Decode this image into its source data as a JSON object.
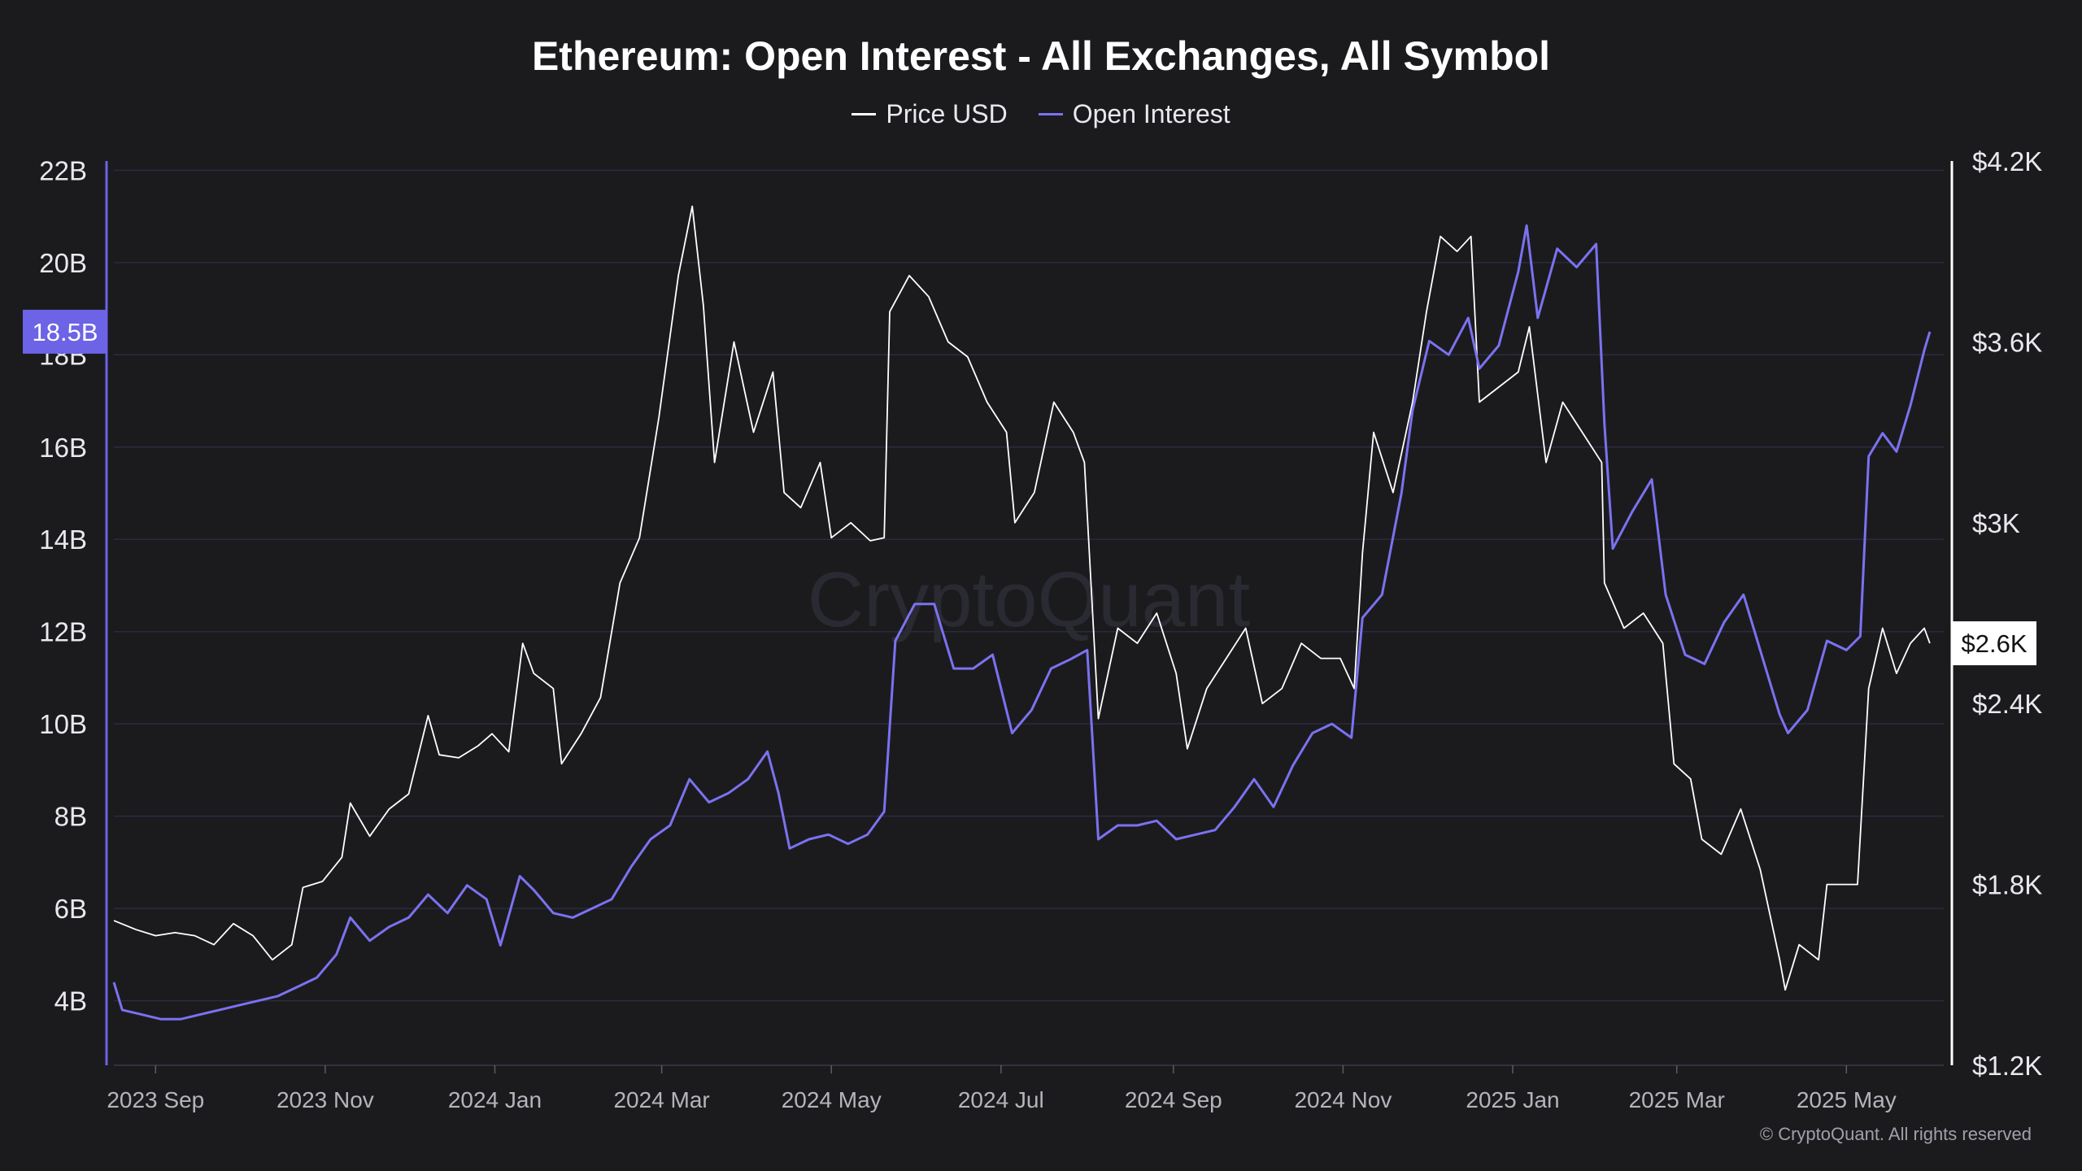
{
  "chart_data": {
    "type": "line",
    "title": "Ethereum: Open Interest - All Exchanges, All Symbol",
    "watermark": "CryptoQuant",
    "copyright": "© CryptoQuant. All rights reserved",
    "series": [
      {
        "name": "Price USD",
        "axis": "right",
        "color": "#ffffff",
        "points": [
          [
            "2023-08-17",
            1680
          ],
          [
            "2023-08-25",
            1650
          ],
          [
            "2023-09-01",
            1630
          ],
          [
            "2023-09-08",
            1640
          ],
          [
            "2023-09-15",
            1630
          ],
          [
            "2023-09-22",
            1600
          ],
          [
            "2023-09-29",
            1670
          ],
          [
            "2023-10-06",
            1630
          ],
          [
            "2023-10-13",
            1550
          ],
          [
            "2023-10-20",
            1600
          ],
          [
            "2023-10-24",
            1790
          ],
          [
            "2023-10-31",
            1810
          ],
          [
            "2023-11-07",
            1890
          ],
          [
            "2023-11-10",
            2070
          ],
          [
            "2023-11-17",
            1960
          ],
          [
            "2023-11-24",
            2050
          ],
          [
            "2023-12-01",
            2100
          ],
          [
            "2023-12-08",
            2360
          ],
          [
            "2023-12-12",
            2230
          ],
          [
            "2023-12-19",
            2220
          ],
          [
            "2023-12-26",
            2260
          ],
          [
            "2023-12-31",
            2300
          ],
          [
            "2024-01-06",
            2240
          ],
          [
            "2024-01-11",
            2600
          ],
          [
            "2024-01-15",
            2500
          ],
          [
            "2024-01-22",
            2450
          ],
          [
            "2024-01-25",
            2200
          ],
          [
            "2024-02-01",
            2300
          ],
          [
            "2024-02-08",
            2420
          ],
          [
            "2024-02-15",
            2800
          ],
          [
            "2024-02-22",
            2950
          ],
          [
            "2024-02-29",
            3350
          ],
          [
            "2024-03-07",
            3820
          ],
          [
            "2024-03-12",
            4050
          ],
          [
            "2024-03-16",
            3720
          ],
          [
            "2024-03-20",
            3200
          ],
          [
            "2024-03-27",
            3600
          ],
          [
            "2024-04-03",
            3300
          ],
          [
            "2024-04-10",
            3500
          ],
          [
            "2024-04-14",
            3100
          ],
          [
            "2024-04-20",
            3050
          ],
          [
            "2024-04-27",
            3200
          ],
          [
            "2024-05-01",
            2950
          ],
          [
            "2024-05-08",
            3000
          ],
          [
            "2024-05-15",
            2940
          ],
          [
            "2024-05-20",
            2950
          ],
          [
            "2024-05-22",
            3700
          ],
          [
            "2024-05-29",
            3820
          ],
          [
            "2024-06-05",
            3750
          ],
          [
            "2024-06-12",
            3600
          ],
          [
            "2024-06-19",
            3550
          ],
          [
            "2024-06-26",
            3400
          ],
          [
            "2024-07-03",
            3300
          ],
          [
            "2024-07-06",
            3000
          ],
          [
            "2024-07-13",
            3100
          ],
          [
            "2024-07-20",
            3400
          ],
          [
            "2024-07-27",
            3300
          ],
          [
            "2024-07-31",
            3200
          ],
          [
            "2024-08-05",
            2350
          ],
          [
            "2024-08-12",
            2650
          ],
          [
            "2024-08-19",
            2600
          ],
          [
            "2024-08-26",
            2700
          ],
          [
            "2024-09-02",
            2500
          ],
          [
            "2024-09-06",
            2250
          ],
          [
            "2024-09-13",
            2450
          ],
          [
            "2024-09-20",
            2550
          ],
          [
            "2024-09-27",
            2650
          ],
          [
            "2024-10-03",
            2400
          ],
          [
            "2024-10-10",
            2450
          ],
          [
            "2024-10-17",
            2600
          ],
          [
            "2024-10-24",
            2550
          ],
          [
            "2024-10-31",
            2550
          ],
          [
            "2024-11-05",
            2450
          ],
          [
            "2024-11-08",
            2900
          ],
          [
            "2024-11-12",
            3300
          ],
          [
            "2024-11-19",
            3100
          ],
          [
            "2024-11-26",
            3400
          ],
          [
            "2024-12-01",
            3700
          ],
          [
            "2024-12-06",
            3950
          ],
          [
            "2024-12-12",
            3900
          ],
          [
            "2024-12-17",
            3950
          ],
          [
            "2024-12-20",
            3400
          ],
          [
            "2024-12-27",
            3450
          ],
          [
            "2025-01-03",
            3500
          ],
          [
            "2025-01-07",
            3650
          ],
          [
            "2025-01-13",
            3200
          ],
          [
            "2025-01-19",
            3400
          ],
          [
            "2025-01-26",
            3300
          ],
          [
            "2025-02-02",
            3200
          ],
          [
            "2025-02-03",
            2800
          ],
          [
            "2025-02-10",
            2650
          ],
          [
            "2025-02-17",
            2700
          ],
          [
            "2025-02-24",
            2600
          ],
          [
            "2025-02-28",
            2200
          ],
          [
            "2025-03-06",
            2150
          ],
          [
            "2025-03-10",
            1950
          ],
          [
            "2025-03-17",
            1900
          ],
          [
            "2025-03-24",
            2050
          ],
          [
            "2025-03-31",
            1850
          ],
          [
            "2025-04-07",
            1550
          ],
          [
            "2025-04-09",
            1450
          ],
          [
            "2025-04-14",
            1600
          ],
          [
            "2025-04-21",
            1550
          ],
          [
            "2025-04-24",
            1800
          ],
          [
            "2025-04-30",
            1800
          ],
          [
            "2025-05-05",
            1800
          ],
          [
            "2025-05-09",
            2450
          ],
          [
            "2025-05-14",
            2650
          ],
          [
            "2025-05-19",
            2500
          ],
          [
            "2025-05-24",
            2600
          ],
          [
            "2025-05-29",
            2650
          ],
          [
            "2025-05-31",
            2600
          ]
        ]
      },
      {
        "name": "Open Interest",
        "axis": "left",
        "color": "#7b72f0",
        "points": [
          [
            "2023-08-17",
            4.4
          ],
          [
            "2023-08-20",
            3.8
          ],
          [
            "2023-08-27",
            3.7
          ],
          [
            "2023-09-03",
            3.6
          ],
          [
            "2023-09-10",
            3.6
          ],
          [
            "2023-09-17",
            3.7
          ],
          [
            "2023-09-24",
            3.8
          ],
          [
            "2023-10-01",
            3.9
          ],
          [
            "2023-10-08",
            4.0
          ],
          [
            "2023-10-15",
            4.1
          ],
          [
            "2023-10-22",
            4.3
          ],
          [
            "2023-10-29",
            4.5
          ],
          [
            "2023-11-05",
            5.0
          ],
          [
            "2023-11-10",
            5.8
          ],
          [
            "2023-11-17",
            5.3
          ],
          [
            "2023-11-24",
            5.6
          ],
          [
            "2023-12-01",
            5.8
          ],
          [
            "2023-12-08",
            6.3
          ],
          [
            "2023-12-15",
            5.9
          ],
          [
            "2023-12-22",
            6.5
          ],
          [
            "2023-12-29",
            6.2
          ],
          [
            "2024-01-03",
            5.2
          ],
          [
            "2024-01-10",
            6.7
          ],
          [
            "2024-01-15",
            6.4
          ],
          [
            "2024-01-22",
            5.9
          ],
          [
            "2024-01-29",
            5.8
          ],
          [
            "2024-02-05",
            6.0
          ],
          [
            "2024-02-12",
            6.2
          ],
          [
            "2024-02-19",
            6.9
          ],
          [
            "2024-02-26",
            7.5
          ],
          [
            "2024-03-04",
            7.8
          ],
          [
            "2024-03-11",
            8.8
          ],
          [
            "2024-03-18",
            8.3
          ],
          [
            "2024-03-25",
            8.5
          ],
          [
            "2024-04-01",
            8.8
          ],
          [
            "2024-04-08",
            9.4
          ],
          [
            "2024-04-12",
            8.5
          ],
          [
            "2024-04-16",
            7.3
          ],
          [
            "2024-04-23",
            7.5
          ],
          [
            "2024-04-30",
            7.6
          ],
          [
            "2024-05-07",
            7.4
          ],
          [
            "2024-05-14",
            7.6
          ],
          [
            "2024-05-20",
            8.1
          ],
          [
            "2024-05-24",
            11.8
          ],
          [
            "2024-05-31",
            12.6
          ],
          [
            "2024-06-07",
            12.6
          ],
          [
            "2024-06-14",
            11.2
          ],
          [
            "2024-06-21",
            11.2
          ],
          [
            "2024-06-28",
            11.5
          ],
          [
            "2024-07-05",
            9.8
          ],
          [
            "2024-07-12",
            10.3
          ],
          [
            "2024-07-19",
            11.2
          ],
          [
            "2024-07-26",
            11.4
          ],
          [
            "2024-08-01",
            11.6
          ],
          [
            "2024-08-05",
            7.5
          ],
          [
            "2024-08-12",
            7.8
          ],
          [
            "2024-08-19",
            7.8
          ],
          [
            "2024-08-26",
            7.9
          ],
          [
            "2024-09-02",
            7.5
          ],
          [
            "2024-09-09",
            7.6
          ],
          [
            "2024-09-16",
            7.7
          ],
          [
            "2024-09-23",
            8.2
          ],
          [
            "2024-09-30",
            8.8
          ],
          [
            "2024-10-07",
            8.2
          ],
          [
            "2024-10-14",
            9.1
          ],
          [
            "2024-10-21",
            9.8
          ],
          [
            "2024-10-28",
            10.0
          ],
          [
            "2024-11-04",
            9.7
          ],
          [
            "2024-11-08",
            12.3
          ],
          [
            "2024-11-15",
            12.8
          ],
          [
            "2024-11-22",
            15.0
          ],
          [
            "2024-11-26",
            16.8
          ],
          [
            "2024-12-02",
            18.3
          ],
          [
            "2024-12-09",
            18.0
          ],
          [
            "2024-12-16",
            18.8
          ],
          [
            "2024-12-20",
            17.7
          ],
          [
            "2024-12-27",
            18.2
          ],
          [
            "2025-01-03",
            19.8
          ],
          [
            "2025-01-06",
            20.8
          ],
          [
            "2025-01-10",
            18.8
          ],
          [
            "2025-01-17",
            20.3
          ],
          [
            "2025-01-24",
            19.9
          ],
          [
            "2025-01-31",
            20.4
          ],
          [
            "2025-02-03",
            16.5
          ],
          [
            "2025-02-06",
            13.8
          ],
          [
            "2025-02-13",
            14.6
          ],
          [
            "2025-02-20",
            15.3
          ],
          [
            "2025-02-25",
            12.8
          ],
          [
            "2025-03-04",
            11.5
          ],
          [
            "2025-03-11",
            11.3
          ],
          [
            "2025-03-18",
            12.2
          ],
          [
            "2025-03-25",
            12.8
          ],
          [
            "2025-04-01",
            11.4
          ],
          [
            "2025-04-07",
            10.2
          ],
          [
            "2025-04-10",
            9.8
          ],
          [
            "2025-04-17",
            10.3
          ],
          [
            "2025-04-24",
            11.8
          ],
          [
            "2025-05-01",
            11.6
          ],
          [
            "2025-05-06",
            11.9
          ],
          [
            "2025-05-09",
            15.8
          ],
          [
            "2025-05-14",
            16.3
          ],
          [
            "2025-05-19",
            15.9
          ],
          [
            "2025-05-24",
            16.9
          ],
          [
            "2025-05-29",
            18.1
          ],
          [
            "2025-05-31",
            18.5
          ]
        ]
      }
    ],
    "x_axis": {
      "type": "date",
      "range": [
        "2023-08-17",
        "2025-06-05"
      ],
      "ticks": [
        {
          "date": "2023-09-01",
          "label": "2023 Sep"
        },
        {
          "date": "2023-11-01",
          "label": "2023 Nov"
        },
        {
          "date": "2024-01-01",
          "label": "2024 Jan"
        },
        {
          "date": "2024-03-01",
          "label": "2024 Mar"
        },
        {
          "date": "2024-05-01",
          "label": "2024 May"
        },
        {
          "date": "2024-07-01",
          "label": "2024 Jul"
        },
        {
          "date": "2024-09-01",
          "label": "2024 Sep"
        },
        {
          "date": "2024-11-01",
          "label": "2024 Nov"
        },
        {
          "date": "2025-01-01",
          "label": "2025 Jan"
        },
        {
          "date": "2025-03-01",
          "label": "2025 Mar"
        },
        {
          "date": "2025-05-01",
          "label": "2025 May"
        }
      ]
    },
    "y_left": {
      "label": "",
      "range": [
        2.6,
        22.2
      ],
      "ticks": [
        {
          "value": 4,
          "label": "4B"
        },
        {
          "value": 6,
          "label": "6B"
        },
        {
          "value": 8,
          "label": "8B"
        },
        {
          "value": 10,
          "label": "10B"
        },
        {
          "value": 12,
          "label": "12B"
        },
        {
          "value": 14,
          "label": "14B"
        },
        {
          "value": 16,
          "label": "16B"
        },
        {
          "value": 18,
          "label": "18B"
        },
        {
          "value": 20,
          "label": "20B"
        },
        {
          "value": 22,
          "label": "22B"
        }
      ],
      "current_value": 18.5,
      "current_label": "18.5B",
      "current_color": "#6c63e6"
    },
    "y_right": {
      "label": "",
      "range": [
        1200,
        4200
      ],
      "ticks": [
        {
          "value": 1200,
          "label": "$1.2K"
        },
        {
          "value": 1800,
          "label": "$1.8K"
        },
        {
          "value": 2400,
          "label": "$2.4K"
        },
        {
          "value": 3000,
          "label": "$3K"
        },
        {
          "value": 3600,
          "label": "$3.6K"
        },
        {
          "value": 4200,
          "label": "$4.2K"
        }
      ],
      "current_value": 2600,
      "current_label": "$2.6K",
      "current_color": "#ffffff"
    },
    "grid": true,
    "legend_position": "top-center",
    "colors": {
      "background": "#1b1b1e",
      "grid": "#2b2b40",
      "left_axis": "#6c63e6",
      "right_axis": "#ffffff",
      "tick_text": "#e8e8ee",
      "x_tick_text": "#b4b4bc"
    }
  }
}
